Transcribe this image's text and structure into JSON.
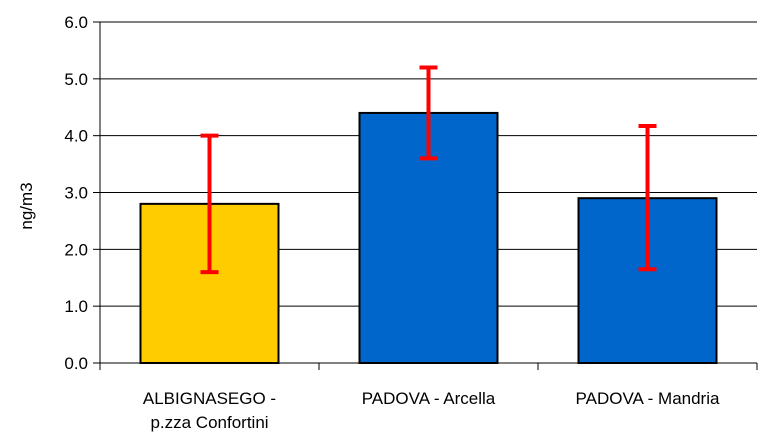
{
  "chart_data": {
    "type": "bar",
    "title": "",
    "xlabel": "",
    "ylabel": "ng/m3",
    "ylim": [
      0,
      6
    ],
    "yticks": [
      "0.0",
      "1.0",
      "2.0",
      "3.0",
      "4.0",
      "5.0",
      "6.0"
    ],
    "grid": true,
    "legend": "none",
    "categories": [
      [
        "ALBIGNASEGO -",
        "p.zza Confortini"
      ],
      [
        "PADOVA - Arcella"
      ],
      [
        "PADOVA - Mandria"
      ]
    ],
    "values": [
      2.8,
      4.4,
      2.9
    ],
    "error_low": [
      1.6,
      3.6,
      1.65
    ],
    "error_high": [
      4.0,
      5.2,
      4.17
    ],
    "bar_colors": [
      "#FFCC00",
      "#0066CC",
      "#0066CC"
    ],
    "error_color": "#FF0000"
  }
}
